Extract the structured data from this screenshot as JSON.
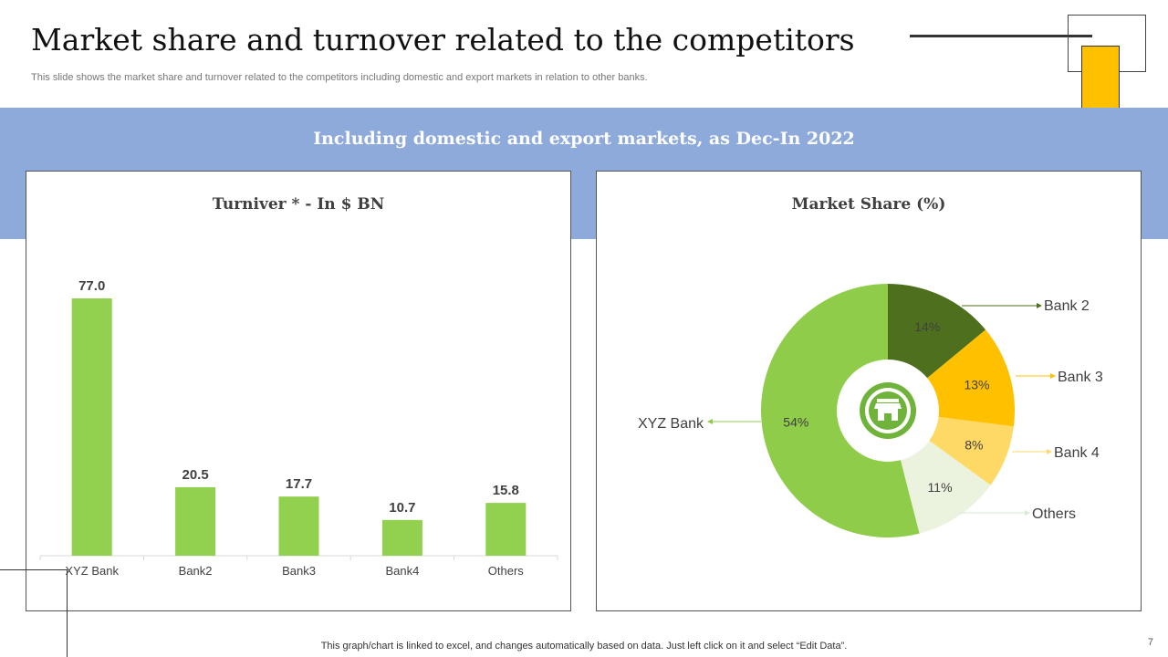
{
  "slide": {
    "title": "Market share and turnover related to the competitors",
    "subtitle": "This slide shows the market share and turnover related to the competitors including domestic and export markets in relation to other banks.",
    "banner": "Including domestic and export markets, as Dec-In 2022",
    "footnote": "This graph/chart is linked to excel,  and changes automatically based on data. Just left click on it and select “Edit Data”.",
    "page_number": "7"
  },
  "colors": {
    "bar": "#92d050",
    "accent_yellow": "#ffc000",
    "banner": "#8eaadb"
  },
  "chart_data": [
    {
      "type": "bar",
      "title": "Turniver * - In $ BN",
      "categories": [
        "XYZ Bank",
        "Bank2",
        "Bank3",
        "Bank4",
        "Others"
      ],
      "values": [
        77.0,
        20.5,
        17.7,
        10.7,
        15.8
      ],
      "data_labels": [
        "77.0",
        "20.5",
        "17.7",
        "10.7",
        "15.8"
      ],
      "xlabel": "",
      "ylabel": "",
      "ylim": [
        0,
        77
      ],
      "grid": false
    },
    {
      "type": "pie",
      "title": "Market Share (%)",
      "center_icon": "store-icon",
      "slices": [
        {
          "label": "Bank 2",
          "value": 14,
          "display": "14%",
          "color": "#4e6f1e"
        },
        {
          "label": "Bank 3",
          "value": 13,
          "display": "13%",
          "color": "#ffc000"
        },
        {
          "label": "Bank 4",
          "value": 8,
          "display": "8%",
          "color": "#ffd966"
        },
        {
          "label": "Others",
          "value": 11,
          "display": "11%",
          "color": "#ebf3df"
        },
        {
          "label": "XYZ Bank",
          "value": 54,
          "display": "54%",
          "color": "#8fcc4a"
        }
      ]
    }
  ]
}
